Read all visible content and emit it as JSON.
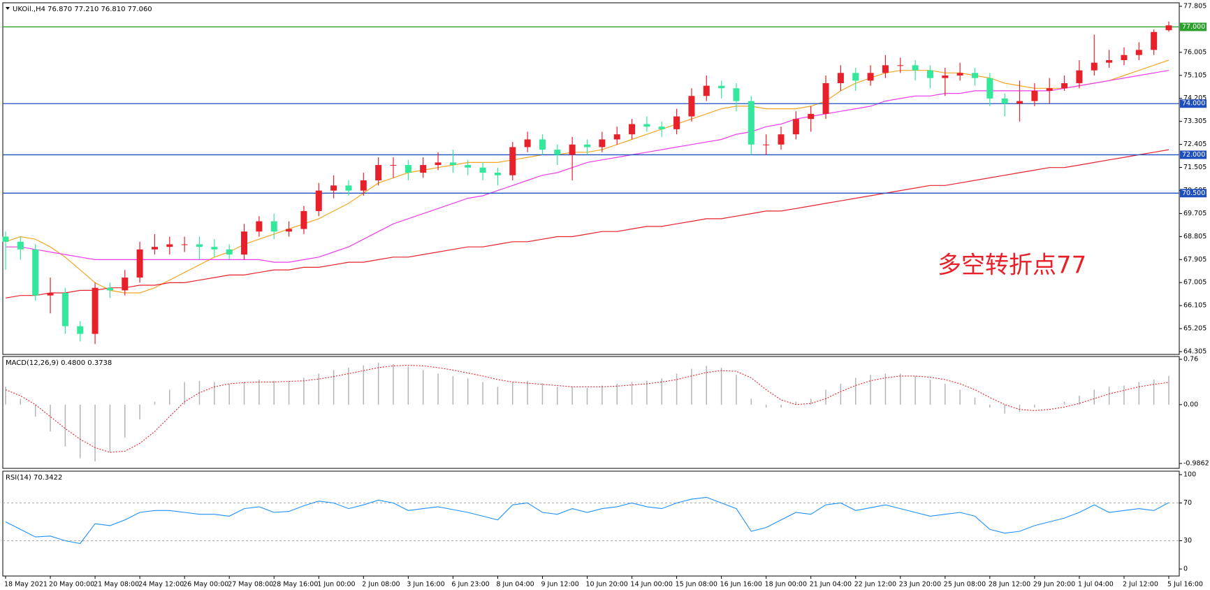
{
  "chart_data": [
    {
      "type": "candlestick",
      "title": "UKOil.,H4 76.870 77.210 76.810 77.060",
      "annotation": "多空转折点77",
      "annotation_color": "#e8202a",
      "up_color": "#e8202a",
      "down_color": "#33e89a",
      "categories": [
        "18 May 2021",
        null,
        null,
        "20 May 00:00",
        null,
        null,
        "21 May 08:00",
        null,
        null,
        "24 May 12:00",
        null,
        null,
        "26 May 00:00",
        null,
        null,
        "27 May 08:00",
        null,
        null,
        "28 May 16:00",
        null,
        null,
        "1 Jun 00:00",
        null,
        null,
        "2 Jun 08:00",
        null,
        null,
        "3 Jun 16:00",
        null,
        null,
        "6 Jun 23:00",
        null,
        null,
        "8 Jun 04:00",
        null,
        null,
        "9 Jun 12:00",
        null,
        null,
        "10 Jun 20:00",
        null,
        null,
        "14 Jun 00:00",
        null,
        null,
        "15 Jun 08:00",
        null,
        null,
        "16 Jun 16:00",
        null,
        null,
        "18 Jun 00:00",
        null,
        null,
        "21 Jun 04:00",
        null,
        null,
        "22 Jun 12:00",
        null,
        null,
        "23 Jun 20:00",
        null,
        null,
        "25 Jun 08:00",
        null,
        null,
        "28 Jun 12:00",
        null,
        null,
        "29 Jun 20:00",
        null,
        null,
        "1 Jul 04:00",
        null,
        null,
        "2 Jul 12:00",
        null,
        null,
        "5 Jul 16:00"
      ],
      "open": [
        68.8,
        68.6,
        68.3,
        66.5,
        66.6,
        65.3,
        65.0,
        66.8,
        66.7,
        67.2,
        68.3,
        68.4,
        68.5,
        68.5,
        68.4,
        68.3,
        68.1,
        69.0,
        69.4,
        69.0,
        69.1,
        69.8,
        70.6,
        70.8,
        70.6,
        71.0,
        71.6,
        71.6,
        71.3,
        71.6,
        71.7,
        71.6,
        71.5,
        71.3,
        71.2,
        72.3,
        72.6,
        72.2,
        72.0,
        72.4,
        72.3,
        72.6,
        72.8,
        73.2,
        73.1,
        73.0,
        73.5,
        74.3,
        74.7,
        74.6,
        74.1,
        72.4,
        72.4,
        72.8,
        73.4,
        73.6,
        74.8,
        75.2,
        74.9,
        75.2,
        75.5,
        75.5,
        75.3,
        75.0,
        75.1,
        75.2,
        75.0,
        74.2,
        74.0,
        74.1,
        74.5,
        74.6,
        74.8,
        75.3,
        75.6,
        75.7,
        75.9,
        76.1,
        76.87
      ],
      "high": [
        69.0,
        68.8,
        68.5,
        67.2,
        66.8,
        65.5,
        67.0,
        67.0,
        67.5,
        68.6,
        68.9,
        68.8,
        68.8,
        68.8,
        68.7,
        68.5,
        69.3,
        69.6,
        69.7,
        69.4,
        70.0,
        70.9,
        71.2,
        71.0,
        71.3,
        71.9,
        71.9,
        71.8,
        71.9,
        72.1,
        72.2,
        71.8,
        71.7,
        71.5,
        72.5,
        72.9,
        72.8,
        72.4,
        72.7,
        72.6,
        72.9,
        73.1,
        73.4,
        73.5,
        73.3,
        73.8,
        74.6,
        75.1,
        74.9,
        74.8,
        74.3,
        72.8,
        73.1,
        73.7,
        73.9,
        75.1,
        75.5,
        75.4,
        75.5,
        75.9,
        75.8,
        75.7,
        75.5,
        75.4,
        75.6,
        75.4,
        75.2,
        74.4,
        74.9,
        74.8,
        75.0,
        75.1,
        75.7,
        76.7,
        76.1,
        76.2,
        76.4,
        76.9,
        77.21
      ],
      "low": [
        67.5,
        67.9,
        66.3,
        65.8,
        65.0,
        64.7,
        64.6,
        66.4,
        66.5,
        67.0,
        68.1,
        68.1,
        68.2,
        67.9,
        68.0,
        67.9,
        67.9,
        68.8,
        68.7,
        68.8,
        68.9,
        69.6,
        70.3,
        70.4,
        70.4,
        70.8,
        71.1,
        71.0,
        71.1,
        71.4,
        71.3,
        71.2,
        71.0,
        70.8,
        71.0,
        72.1,
        72.0,
        71.6,
        71.0,
        72.0,
        72.1,
        72.4,
        72.6,
        72.9,
        72.7,
        72.8,
        73.3,
        74.1,
        74.2,
        73.7,
        72.0,
        72.0,
        72.2,
        72.6,
        72.9,
        73.4,
        74.5,
        74.5,
        74.7,
        75.0,
        75.2,
        74.9,
        74.6,
        74.3,
        74.9,
        74.7,
        73.9,
        73.5,
        73.3,
        73.9,
        74.0,
        74.5,
        74.6,
        75.1,
        75.4,
        75.5,
        75.7,
        75.9,
        76.81
      ],
      "close": [
        68.6,
        68.3,
        66.5,
        66.6,
        65.3,
        65.0,
        66.8,
        66.7,
        67.2,
        68.3,
        68.4,
        68.5,
        68.5,
        68.4,
        68.3,
        68.1,
        69.0,
        69.4,
        69.0,
        69.1,
        69.8,
        70.6,
        70.8,
        70.6,
        71.0,
        71.6,
        71.6,
        71.3,
        71.6,
        71.7,
        71.6,
        71.5,
        71.3,
        71.2,
        72.3,
        72.6,
        72.2,
        72.0,
        72.4,
        72.3,
        72.6,
        72.8,
        73.2,
        73.1,
        73.0,
        73.5,
        74.3,
        74.7,
        74.6,
        74.1,
        72.4,
        72.4,
        72.8,
        73.4,
        73.6,
        74.8,
        75.2,
        74.9,
        75.2,
        75.5,
        75.5,
        75.3,
        75.0,
        75.1,
        75.2,
        75.0,
        74.2,
        74.0,
        74.1,
        74.5,
        74.6,
        74.8,
        75.3,
        75.6,
        75.7,
        75.9,
        76.1,
        76.8,
        77.06
      ],
      "series": [
        {
          "color": "#f5a623",
          "values": [
            68.6,
            68.8,
            68.7,
            68.4,
            68.0,
            67.5,
            67.0,
            66.7,
            66.6,
            66.6,
            66.8,
            67.1,
            67.4,
            67.7,
            68.0,
            68.2,
            68.5,
            68.7,
            68.9,
            69.1,
            69.3,
            69.5,
            69.8,
            70.1,
            70.5,
            70.9,
            71.1,
            71.3,
            71.4,
            71.5,
            71.6,
            71.7,
            71.7,
            71.7,
            71.8,
            71.9,
            72.0,
            72.0,
            72.1,
            72.1,
            72.2,
            72.4,
            72.6,
            72.8,
            73.0,
            73.2,
            73.4,
            73.6,
            73.8,
            73.9,
            73.9,
            73.8,
            73.8,
            73.8,
            73.9,
            74.1,
            74.5,
            74.8,
            75.0,
            75.2,
            75.3,
            75.3,
            75.3,
            75.2,
            75.2,
            75.1,
            75.0,
            74.8,
            74.7,
            74.6,
            74.6,
            74.6,
            74.7,
            74.8,
            74.9,
            75.1,
            75.3,
            75.5,
            75.7
          ]
        },
        {
          "color": "#ee3cee",
          "values": [
            68.4,
            68.4,
            68.3,
            68.2,
            68.1,
            68.0,
            67.9,
            67.9,
            67.9,
            67.9,
            67.9,
            67.9,
            67.9,
            67.9,
            67.9,
            67.9,
            67.9,
            67.9,
            67.8,
            67.8,
            67.9,
            68.0,
            68.2,
            68.4,
            68.7,
            69.0,
            69.3,
            69.5,
            69.7,
            69.9,
            70.1,
            70.3,
            70.4,
            70.6,
            70.8,
            71.0,
            71.2,
            71.3,
            71.5,
            71.7,
            71.8,
            71.9,
            72.0,
            72.1,
            72.2,
            72.3,
            72.4,
            72.5,
            72.6,
            72.8,
            72.9,
            73.1,
            73.2,
            73.4,
            73.5,
            73.6,
            73.7,
            73.8,
            73.9,
            74.1,
            74.2,
            74.3,
            74.3,
            74.4,
            74.4,
            74.5,
            74.5,
            74.5,
            74.5,
            74.5,
            74.5,
            74.6,
            74.7,
            74.8,
            74.9,
            75.0,
            75.1,
            75.2,
            75.3
          ]
        },
        {
          "color": "#e8202a",
          "values": [
            66.4,
            66.5,
            66.5,
            66.6,
            66.6,
            66.7,
            66.7,
            66.8,
            66.8,
            66.9,
            66.9,
            67.0,
            67.0,
            67.1,
            67.2,
            67.3,
            67.3,
            67.4,
            67.5,
            67.5,
            67.6,
            67.6,
            67.7,
            67.8,
            67.8,
            67.9,
            68.0,
            68.0,
            68.1,
            68.2,
            68.3,
            68.4,
            68.4,
            68.5,
            68.6,
            68.6,
            68.7,
            68.8,
            68.8,
            68.9,
            69.0,
            69.0,
            69.1,
            69.2,
            69.2,
            69.3,
            69.4,
            69.5,
            69.5,
            69.6,
            69.7,
            69.8,
            69.8,
            69.9,
            70.0,
            70.1,
            70.2,
            70.3,
            70.4,
            70.5,
            70.6,
            70.7,
            70.8,
            70.8,
            70.9,
            71.0,
            71.1,
            71.2,
            71.3,
            71.4,
            71.5,
            71.5,
            71.6,
            71.7,
            71.8,
            71.9,
            72.0,
            72.1,
            72.2
          ]
        }
      ],
      "levels": [
        {
          "value": 77,
          "label": "77.000",
          "color": "#2ca02c"
        },
        {
          "value": 74,
          "label": "74.000",
          "color": "#1f4fbf"
        },
        {
          "value": 72,
          "label": "72.000",
          "color": "#1f4fbf"
        },
        {
          "value": 70.5,
          "label": "70.500",
          "color": "#1f4fbf"
        }
      ],
      "ylim": [
        64.305,
        77.805
      ],
      "yticks": [
        77.805,
        76.005,
        75.105,
        74.205,
        73.305,
        72.405,
        71.505,
        70.605,
        69.705,
        68.805,
        67.905,
        67.005,
        66.105,
        65.205,
        64.305
      ]
    },
    {
      "type": "macd",
      "title": "MACD(12,26,9) 0.4800 0.3738",
      "histogram": [
        0.3,
        0.1,
        -0.2,
        -0.45,
        -0.7,
        -0.9,
        -0.95,
        -0.8,
        -0.55,
        -0.25,
        0.05,
        0.25,
        0.38,
        0.4,
        0.38,
        0.35,
        0.38,
        0.42,
        0.4,
        0.4,
        0.45,
        0.52,
        0.58,
        0.62,
        0.66,
        0.7,
        0.68,
        0.64,
        0.58,
        0.52,
        0.48,
        0.44,
        0.38,
        0.3,
        0.38,
        0.4,
        0.36,
        0.3,
        0.3,
        0.28,
        0.32,
        0.35,
        0.38,
        0.4,
        0.44,
        0.52,
        0.6,
        0.65,
        0.62,
        0.5,
        0.1,
        -0.05,
        -0.05,
        0.05,
        0.1,
        0.25,
        0.35,
        0.45,
        0.5,
        0.52,
        0.52,
        0.48,
        0.42,
        0.35,
        0.25,
        0.12,
        -0.05,
        -0.15,
        -0.12,
        -0.05,
        0.0,
        0.05,
        0.15,
        0.25,
        0.3,
        0.32,
        0.38,
        0.42,
        0.48
      ],
      "histogram_color": "#b4b4b4",
      "signal": [
        0.25,
        0.15,
        0.0,
        -0.2,
        -0.4,
        -0.58,
        -0.72,
        -0.8,
        -0.78,
        -0.65,
        -0.45,
        -0.2,
        0.05,
        0.2,
        0.3,
        0.35,
        0.37,
        0.38,
        0.38,
        0.39,
        0.4,
        0.43,
        0.47,
        0.52,
        0.57,
        0.62,
        0.65,
        0.66,
        0.65,
        0.62,
        0.58,
        0.53,
        0.48,
        0.42,
        0.38,
        0.36,
        0.34,
        0.32,
        0.3,
        0.3,
        0.3,
        0.31,
        0.33,
        0.35,
        0.38,
        0.42,
        0.48,
        0.54,
        0.57,
        0.56,
        0.45,
        0.25,
        0.08,
        0.0,
        0.02,
        0.1,
        0.22,
        0.32,
        0.4,
        0.45,
        0.48,
        0.48,
        0.46,
        0.42,
        0.35,
        0.25,
        0.12,
        0.0,
        -0.08,
        -0.1,
        -0.08,
        -0.04,
        0.02,
        0.1,
        0.18,
        0.24,
        0.3,
        0.34,
        0.3738
      ],
      "signal_color": "#e8202a",
      "ylim": [
        -0.9862,
        0.76
      ],
      "yticks": [
        0.76,
        {
          "value": 0,
          "label": "0.00"
        },
        -0.9862
      ]
    },
    {
      "type": "line",
      "title": "RSI(14) 70.3422",
      "values": [
        50,
        42,
        34,
        35,
        30,
        27,
        48,
        46,
        52,
        60,
        62,
        62,
        60,
        58,
        58,
        56,
        64,
        66,
        60,
        61,
        67,
        72,
        70,
        64,
        68,
        73,
        70,
        62,
        64,
        66,
        63,
        60,
        56,
        52,
        68,
        70,
        60,
        58,
        64,
        60,
        64,
        66,
        70,
        66,
        64,
        70,
        74,
        76,
        70,
        64,
        40,
        44,
        52,
        60,
        58,
        68,
        70,
        62,
        65,
        68,
        64,
        60,
        56,
        58,
        60,
        56,
        42,
        38,
        40,
        46,
        50,
        54,
        60,
        68,
        60,
        62,
        64,
        62,
        70.3422
      ],
      "color": "#1e90ff",
      "levels": [
        70,
        30
      ],
      "ylim": [
        0,
        100
      ],
      "yticks": [
        100,
        70,
        30,
        0
      ]
    }
  ]
}
